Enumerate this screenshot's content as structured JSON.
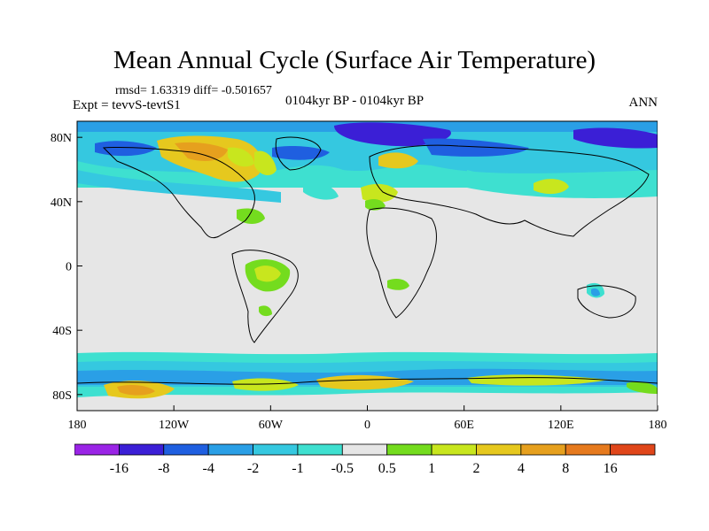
{
  "title": "Mean Annual Cycle (Surface Air Temperature)",
  "stats": "rmsd= 1.63319 diff= -0.501657",
  "expt": "Expt = tevvS-tevtS1",
  "period": "0104kyr BP - 0104kyr BP",
  "season": "ANN",
  "map": {
    "lon_range": [
      -180,
      180
    ],
    "lat_range": [
      -90,
      90
    ],
    "y_ticks": [
      {
        "value": 80,
        "label": "80N"
      },
      {
        "value": 40,
        "label": "40N"
      },
      {
        "value": 0,
        "label": "0"
      },
      {
        "value": -40,
        "label": "40S"
      },
      {
        "value": -80,
        "label": "80S"
      }
    ],
    "x_ticks": [
      {
        "value": -180,
        "label": "180"
      },
      {
        "value": -120,
        "label": "120W"
      },
      {
        "value": -60,
        "label": "60W"
      },
      {
        "value": 0,
        "label": "0"
      },
      {
        "value": 60,
        "label": "60E"
      },
      {
        "value": 120,
        "label": "120E"
      },
      {
        "value": 180,
        "label": "180"
      }
    ]
  },
  "colorbar": {
    "labels": [
      "-16",
      "-8",
      "-4",
      "-2",
      "-1",
      "-0.5",
      "0.5",
      "1",
      "2",
      "4",
      "8",
      "16"
    ],
    "colors": [
      "#9a24e6",
      "#3b1fd6",
      "#1f5fe0",
      "#2a9fe6",
      "#35c8e0",
      "#3ee0d0",
      "#e6e6e6",
      "#74dc1e",
      "#c8e61e",
      "#e6c81e",
      "#e6a01e",
      "#e67a1e",
      "#e0461a"
    ]
  }
}
